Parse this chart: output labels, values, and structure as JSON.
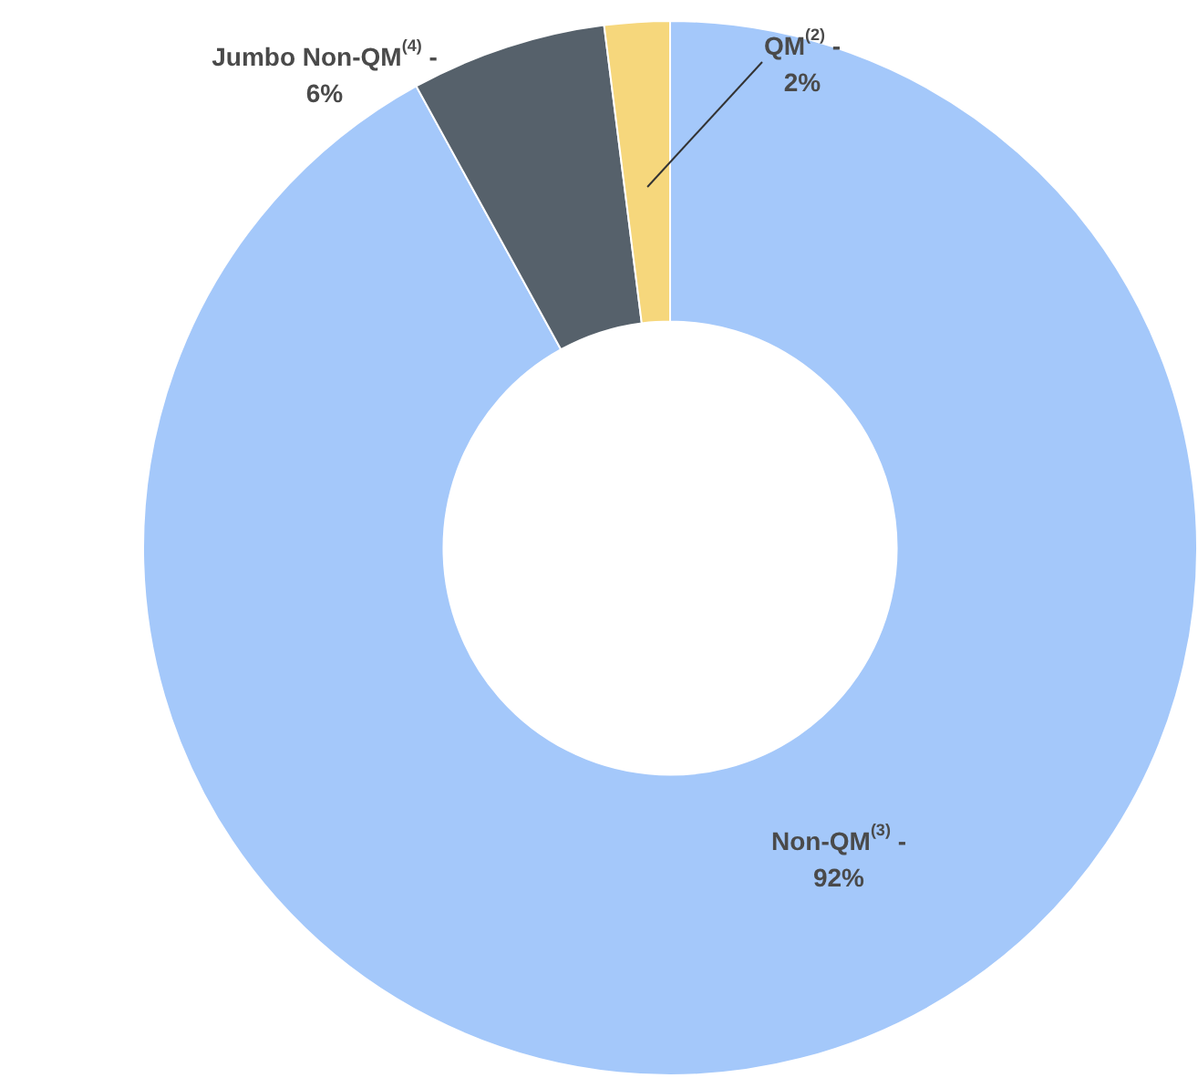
{
  "chart_data": {
    "type": "donut",
    "categories": [
      "Non-QM$^{(3)}$ -",
      "Jumbo Non-QM$^{(4)}$ -",
      "QM$^{(2)}$ -"
    ],
    "values": [
      92,
      6,
      2
    ],
    "value_labels": [
      "92%",
      "6%",
      "2%"
    ],
    "colors": [
      "#a4c8fa",
      "#56616b",
      "#f6d77c"
    ],
    "legend": false
  }
}
